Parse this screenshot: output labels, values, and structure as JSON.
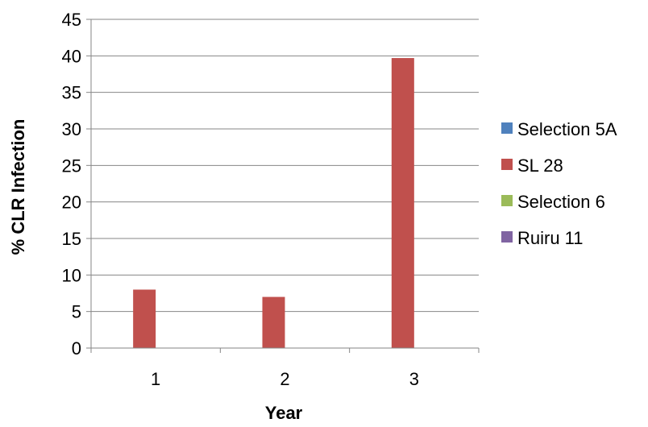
{
  "chart_data": {
    "type": "bar",
    "title": "",
    "xlabel": "Year",
    "ylabel": "% CLR Infection",
    "categories": [
      "1",
      "2",
      "3"
    ],
    "ylim": [
      0,
      45
    ],
    "yticks": [
      0,
      5,
      10,
      15,
      20,
      25,
      30,
      35,
      40,
      45
    ],
    "grid": true,
    "legend_position": "right",
    "series": [
      {
        "name": "Selection 5A",
        "color": "#4f81bd",
        "values": [
          0,
          0,
          0
        ]
      },
      {
        "name": "SL 28",
        "color": "#c0504d",
        "values": [
          8,
          7,
          39.7
        ]
      },
      {
        "name": "Selection 6",
        "color": "#9bbb59",
        "values": [
          0,
          0,
          0
        ]
      },
      {
        "name": "Ruiru 11",
        "color": "#8064a2",
        "values": [
          0,
          0,
          0
        ]
      }
    ]
  }
}
